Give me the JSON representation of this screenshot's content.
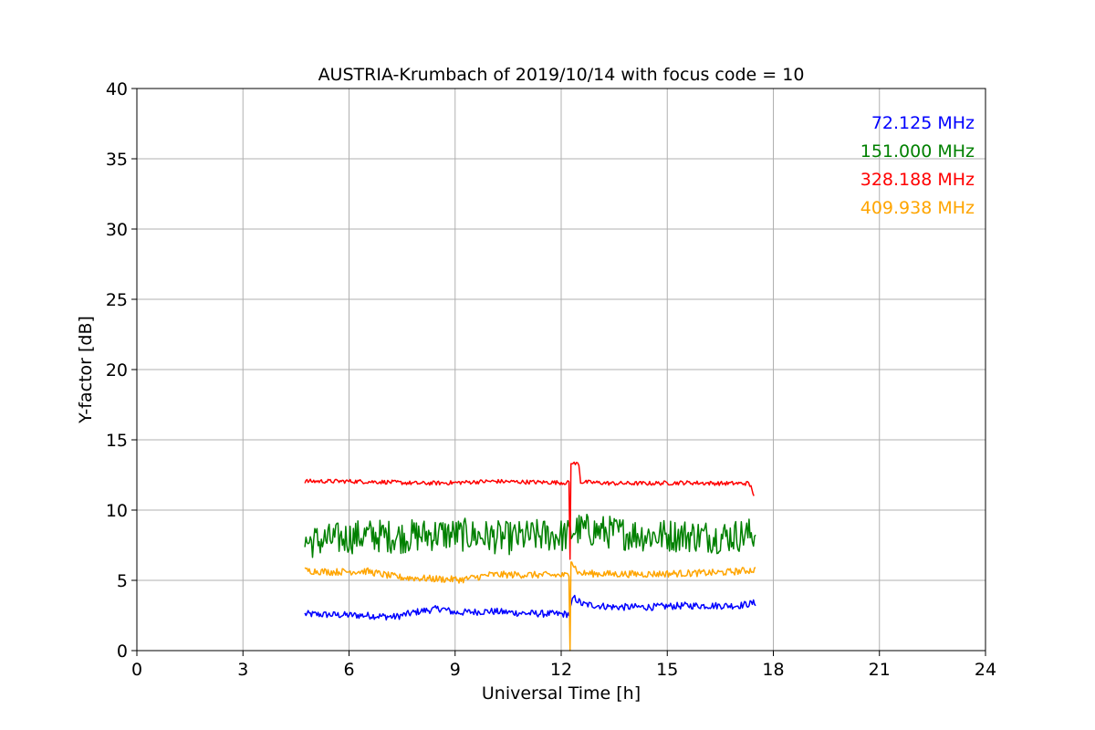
{
  "chart_data": {
    "type": "line",
    "title": "AUSTRIA-Krumbach of 2019/10/14 with focus code = 10",
    "xlabel": "Universal Time [h]",
    "ylabel": "Y-factor [dB]",
    "xlim": [
      0,
      24
    ],
    "ylim": [
      0,
      40
    ],
    "xticks": [
      0,
      3,
      6,
      9,
      12,
      15,
      18,
      21,
      24
    ],
    "yticks": [
      0,
      5,
      10,
      15,
      20,
      25,
      30,
      35,
      40
    ],
    "grid": true,
    "legend_position": "top-right",
    "series": [
      {
        "name": "72.125 MHz",
        "color": "#0000ff",
        "noise": 0.25,
        "points": [
          [
            4.75,
            2.6
          ],
          [
            5.5,
            2.55
          ],
          [
            6.5,
            2.5
          ],
          [
            7.3,
            2.4
          ],
          [
            8.0,
            2.8
          ],
          [
            8.6,
            3.0
          ],
          [
            9.0,
            2.7
          ],
          [
            10.0,
            2.8
          ],
          [
            11.0,
            2.65
          ],
          [
            12.0,
            2.6
          ],
          [
            12.22,
            2.6
          ],
          [
            12.35,
            3.8
          ],
          [
            12.6,
            3.3
          ],
          [
            13.5,
            3.1
          ],
          [
            14.5,
            3.1
          ],
          [
            15.5,
            3.2
          ],
          [
            16.5,
            3.2
          ],
          [
            17.0,
            3.2
          ],
          [
            17.5,
            3.4
          ]
        ]
      },
      {
        "name": "151.000 MHz",
        "color": "#008000",
        "noise": 1.2,
        "points": [
          [
            4.75,
            7.7
          ],
          [
            5.5,
            7.9
          ],
          [
            6.5,
            8.2
          ],
          [
            7.5,
            8.1
          ],
          [
            8.5,
            8.3
          ],
          [
            9.5,
            8.2
          ],
          [
            10.5,
            8.0
          ],
          [
            11.5,
            8.2
          ],
          [
            12.22,
            8.2
          ],
          [
            12.35,
            8.6
          ],
          [
            12.6,
            8.6
          ],
          [
            13.5,
            8.4
          ],
          [
            14.5,
            8.2
          ],
          [
            15.5,
            8.2
          ],
          [
            16.5,
            8.1
          ],
          [
            17.5,
            8.3
          ]
        ]
      },
      {
        "name": "328.188 MHz",
        "color": "#ff0000",
        "noise": 0.15,
        "points": [
          [
            4.75,
            12.05
          ],
          [
            6.0,
            12.05
          ],
          [
            7.0,
            12.0
          ],
          [
            8.0,
            11.9
          ],
          [
            9.0,
            11.95
          ],
          [
            10.0,
            12.05
          ],
          [
            11.0,
            12.0
          ],
          [
            12.22,
            11.95
          ],
          [
            12.25,
            6.5
          ],
          [
            12.3,
            13.3
          ],
          [
            12.5,
            13.3
          ],
          [
            12.55,
            12.0
          ],
          [
            13.5,
            11.9
          ],
          [
            14.5,
            11.9
          ],
          [
            15.5,
            11.95
          ],
          [
            16.5,
            11.9
          ],
          [
            17.3,
            11.9
          ],
          [
            17.4,
            11.5
          ],
          [
            17.45,
            11.0
          ]
        ]
      },
      {
        "name": "409.938 MHz",
        "color": "#ffa500",
        "noise": 0.25,
        "points": [
          [
            4.75,
            5.7
          ],
          [
            5.5,
            5.6
          ],
          [
            6.5,
            5.65
          ],
          [
            7.2,
            5.3
          ],
          [
            7.5,
            5.2
          ],
          [
            8.5,
            5.1
          ],
          [
            9.2,
            5.05
          ],
          [
            10.0,
            5.4
          ],
          [
            11.0,
            5.4
          ],
          [
            12.22,
            5.35
          ],
          [
            12.25,
            0.0
          ],
          [
            12.3,
            6.3
          ],
          [
            12.5,
            5.5
          ],
          [
            13.5,
            5.45
          ],
          [
            14.5,
            5.45
          ],
          [
            15.5,
            5.5
          ],
          [
            16.5,
            5.55
          ],
          [
            17.5,
            5.75
          ]
        ]
      }
    ]
  }
}
